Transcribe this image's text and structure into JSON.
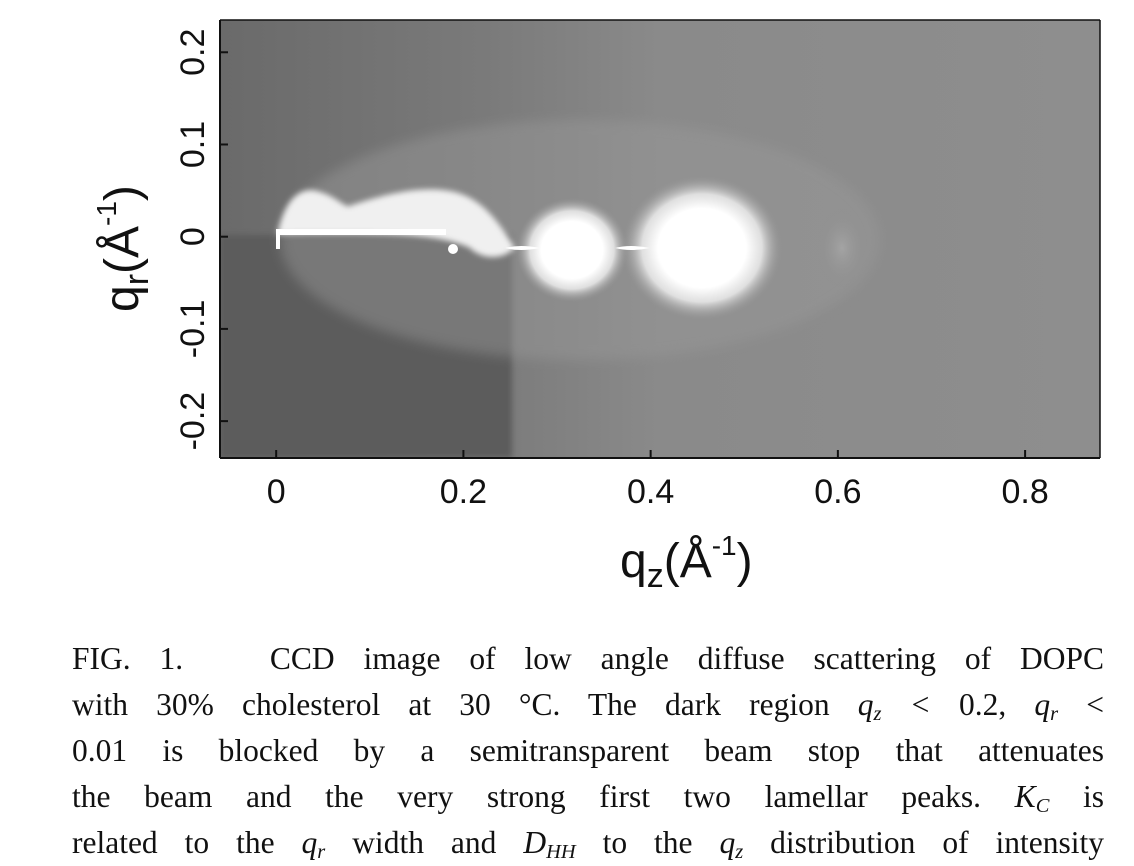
{
  "chart_data": {
    "type": "heatmap",
    "xlabel": "qz(Å-1)",
    "ylabel": "qr(Å-1)",
    "xlim": [
      -0.06,
      0.88
    ],
    "ylim": [
      -0.24,
      0.235
    ],
    "x_ticks": [
      "0",
      "0.2",
      "0.4",
      "0.6",
      "0.8"
    ],
    "x_tick_values": [
      0,
      0.2,
      0.4,
      0.6,
      0.8
    ],
    "y_ticks": [
      "-0.2",
      "-0.1",
      "0",
      "0.1",
      "0.2"
    ],
    "y_tick_values": [
      -0.2,
      -0.1,
      0,
      0.1,
      0.2
    ],
    "colormap": "grayscale",
    "blocked_region": {
      "qz_max": 0.2,
      "qr_max": 0.01
    },
    "lamellar_peaks_qz": [
      0.095,
      0.19,
      0.315,
      0.47,
      0.61
    ]
  },
  "caption": {
    "figure_label": "FIG. 1.",
    "lines": [
      "CCD image of low angle diffuse scattering of DOPC",
      "with 30% cholesterol at 30 °C. The dark region",
      "is blocked by a semitransparent beam stop that attenuates",
      "the beam and the very strong first two lamellar peaks.",
      "related to the",
      "width and",
      "to the",
      "distribution of intensity"
    ],
    "cond1": "qz < 0.2,",
    "cond2": "qr <",
    "cond_val": "0.01",
    "kc": "KC",
    "is": "is",
    "qr": "qr",
    "dhh": "DHH",
    "qz": "qz"
  }
}
